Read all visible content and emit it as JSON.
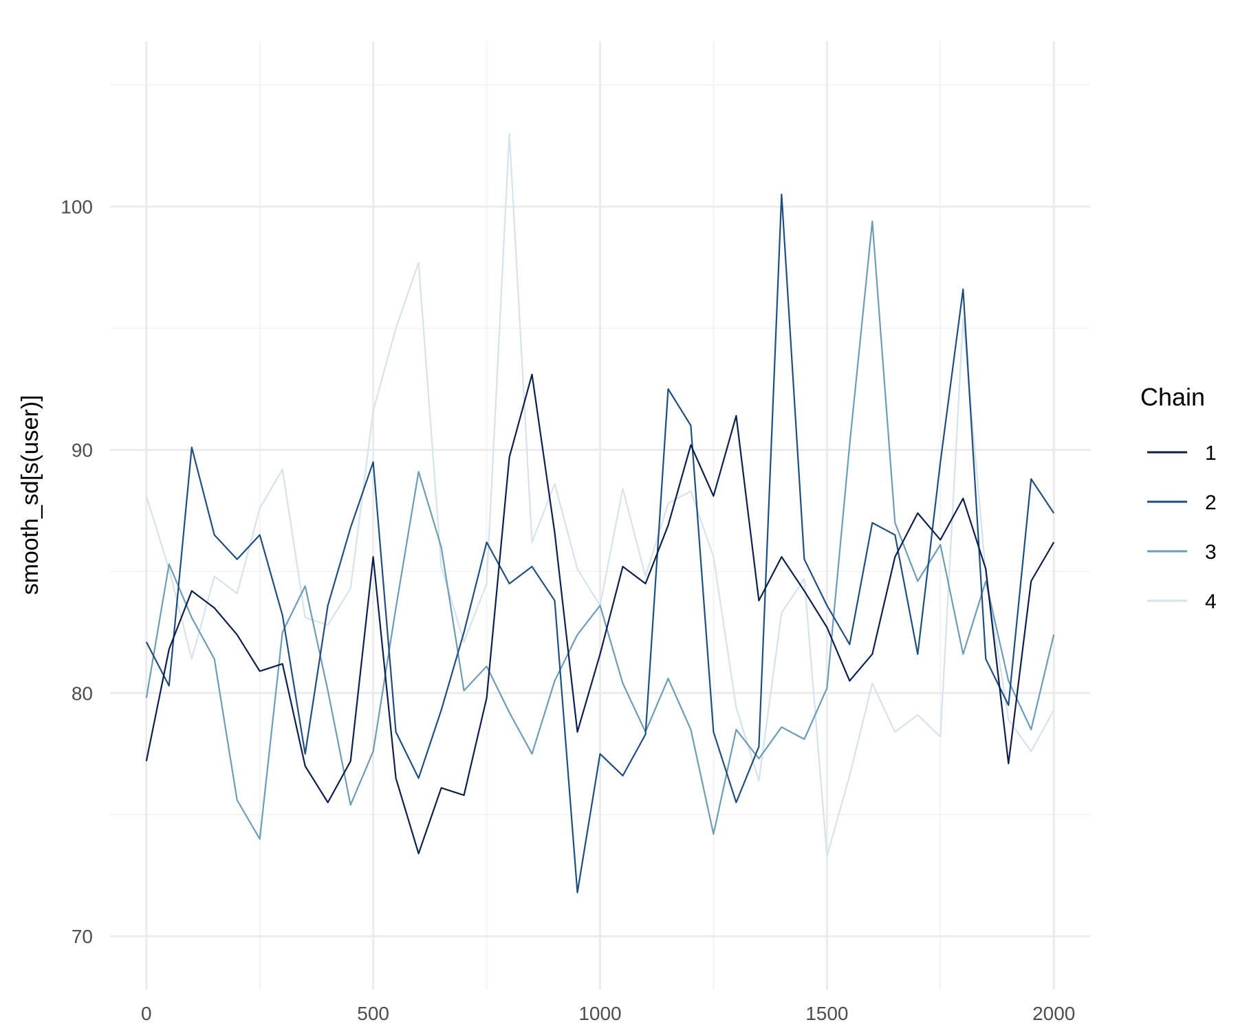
{
  "chart_data": {
    "type": "line",
    "title": "",
    "xlabel": "",
    "ylabel": "smooth_sd[s(user)]",
    "xlim": [
      -80,
      2080
    ],
    "ylim": [
      67.8,
      106.8
    ],
    "x_ticks": [
      0,
      500,
      1000,
      1500,
      2000
    ],
    "x_tick_labels": [
      "0",
      "500",
      "1000",
      "1500",
      "2000"
    ],
    "y_ticks": [
      70,
      80,
      90,
      100
    ],
    "y_tick_labels": [
      "70",
      "80",
      "90",
      "100"
    ],
    "grid": true,
    "legend_position": "right",
    "legend_title": "Chain",
    "series": [
      {
        "name": "1",
        "color": "#0b1f4f",
        "x": [
          0,
          50,
          100,
          150,
          200,
          250,
          300,
          350,
          400,
          450,
          500,
          550,
          600,
          650,
          700,
          750,
          800,
          850,
          900,
          950,
          1000,
          1050,
          1100,
          1150,
          1200,
          1250,
          1300,
          1350,
          1400,
          1450,
          1500,
          1550,
          1600,
          1650,
          1700,
          1750,
          1800,
          1850,
          1900,
          1950,
          2000
        ],
        "values": [
          77.2,
          81.8,
          84.2,
          83.5,
          82.4,
          80.9,
          81.2,
          77.0,
          75.5,
          77.2,
          85.6,
          76.5,
          73.4,
          76.1,
          75.8,
          79.8,
          89.7,
          93.1,
          86.6,
          78.4,
          81.6,
          85.2,
          84.5,
          86.9,
          90.2,
          88.1,
          91.4,
          83.8,
          85.6,
          84.2,
          82.7,
          80.5,
          81.6,
          85.6,
          87.4,
          86.3,
          88.0,
          85.1,
          77.1,
          84.6,
          86.2
        ]
      },
      {
        "name": "2",
        "color": "#1e4d80",
        "x": [
          0,
          50,
          100,
          150,
          200,
          250,
          300,
          350,
          400,
          450,
          500,
          550,
          600,
          650,
          700,
          750,
          800,
          850,
          900,
          950,
          1000,
          1050,
          1100,
          1150,
          1200,
          1250,
          1300,
          1350,
          1400,
          1450,
          1500,
          1550,
          1600,
          1650,
          1700,
          1750,
          1800,
          1850,
          1900,
          1950,
          2000
        ],
        "values": [
          82.1,
          80.3,
          90.1,
          86.5,
          85.5,
          86.5,
          83.2,
          77.5,
          83.6,
          86.8,
          89.5,
          78.4,
          76.5,
          79.3,
          82.5,
          86.2,
          84.5,
          85.2,
          83.8,
          71.8,
          77.5,
          76.6,
          78.3,
          92.5,
          91.0,
          78.4,
          75.5,
          77.8,
          100.5,
          85.5,
          83.6,
          82.0,
          87.0,
          86.5,
          81.6,
          89.5,
          96.6,
          81.4,
          79.5,
          88.8,
          87.4
        ]
      },
      {
        "name": "3",
        "color": "#6b9cb8",
        "x": [
          0,
          50,
          100,
          150,
          200,
          250,
          300,
          350,
          400,
          450,
          500,
          550,
          600,
          650,
          700,
          750,
          800,
          850,
          900,
          950,
          1000,
          1050,
          1100,
          1150,
          1200,
          1250,
          1300,
          1350,
          1400,
          1450,
          1500,
          1550,
          1600,
          1650,
          1700,
          1750,
          1800,
          1850,
          1900,
          1950,
          2000
        ],
        "values": [
          79.8,
          85.3,
          83.1,
          81.4,
          75.6,
          74.0,
          82.5,
          84.4,
          80.1,
          75.4,
          77.6,
          83.5,
          89.1,
          86.0,
          80.1,
          81.1,
          79.2,
          77.5,
          80.5,
          82.4,
          83.6,
          80.4,
          78.4,
          80.6,
          78.5,
          74.2,
          78.5,
          77.3,
          78.6,
          78.1,
          80.2,
          90.2,
          99.4,
          87.0,
          84.6,
          86.1,
          81.6,
          84.6,
          80.5,
          78.5,
          82.4
        ]
      },
      {
        "name": "4",
        "color": "#d5e3ed",
        "x": [
          0,
          50,
          100,
          150,
          200,
          250,
          300,
          350,
          400,
          450,
          500,
          550,
          600,
          650,
          700,
          750,
          800,
          850,
          900,
          950,
          1000,
          1050,
          1100,
          1150,
          1200,
          1250,
          1300,
          1350,
          1400,
          1450,
          1500,
          1550,
          1600,
          1650,
          1700,
          1750,
          1800,
          1850,
          1900,
          1950,
          2000
        ],
        "values": [
          88.1,
          85.1,
          81.4,
          84.8,
          84.1,
          87.6,
          89.2,
          83.1,
          82.8,
          84.3,
          91.6,
          95.0,
          97.7,
          85.2,
          82.1,
          84.5,
          103.0,
          86.2,
          88.6,
          85.1,
          83.6,
          88.4,
          84.8,
          87.8,
          88.3,
          85.6,
          79.4,
          76.4,
          83.3,
          84.7,
          73.3,
          76.6,
          80.4,
          78.4,
          79.1,
          78.2,
          95.4,
          84.9,
          78.9,
          77.6,
          79.3
        ]
      }
    ]
  }
}
